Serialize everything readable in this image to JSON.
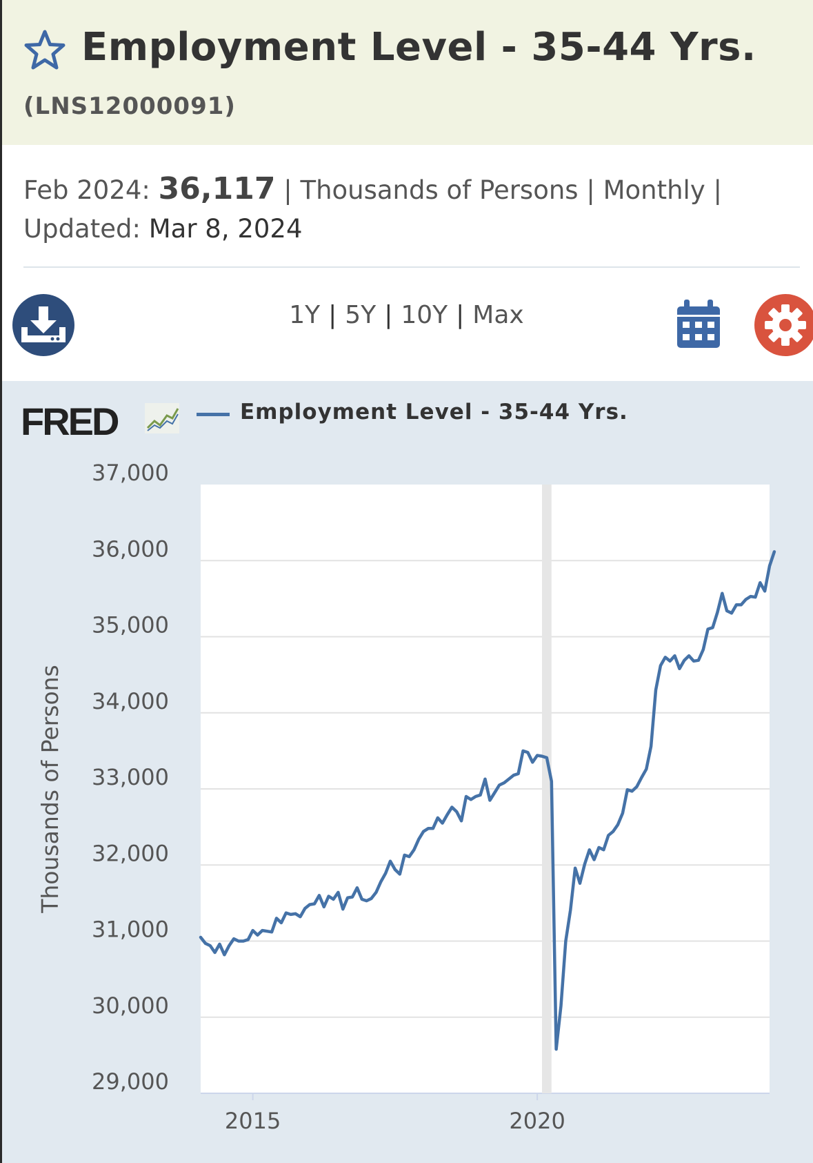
{
  "header": {
    "title": "Employment Level - 35-44 Yrs.",
    "series_id": "(LNS12000091)"
  },
  "meta": {
    "date_label": "Feb 2024:",
    "value": "36,117",
    "units": "Thousands of Persons",
    "frequency": "Monthly",
    "updated_label": "Updated:",
    "updated_date": "Mar 8, 2024",
    "separator": "|"
  },
  "toolbar": {
    "ranges": [
      "1Y",
      "5Y",
      "10Y",
      "Max"
    ]
  },
  "branding": {
    "logo_text": "FRED"
  },
  "colors": {
    "series": "#4572a7",
    "header_bg": "#f1f3e2",
    "chart_bg": "#e1e9f0",
    "download_button": "#2e4d7b",
    "settings_button": "#d9533e",
    "calendar": "#3e68a6",
    "recession_band": "#e6e6e6"
  },
  "chart_data": {
    "type": "line",
    "title": "",
    "xlabel": "",
    "ylabel": "Thousands of Persons",
    "legend": "top-left",
    "grid": true,
    "ylim": [
      29000,
      37000
    ],
    "xlim": [
      "2014-02",
      "2024-02"
    ],
    "yticks": [
      "29,000",
      "30,000",
      "31,000",
      "32,000",
      "33,000",
      "34,000",
      "35,000",
      "36,000",
      "37,000"
    ],
    "xticks": [
      {
        "label": "2015",
        "date": "2015-01"
      },
      {
        "label": "2020",
        "date": "2020-01"
      }
    ],
    "recession": {
      "start": "2020-02",
      "end": "2020-04"
    },
    "series": [
      {
        "name": "Employment Level - 35-44 Yrs.",
        "start": "2014-02",
        "frequency": "monthly",
        "values": [
          31050,
          30970,
          30940,
          30850,
          30960,
          30820,
          30940,
          31030,
          31000,
          31000,
          31020,
          31140,
          31080,
          31140,
          31130,
          31120,
          31300,
          31240,
          31370,
          31350,
          31360,
          31320,
          31430,
          31480,
          31490,
          31600,
          31450,
          31590,
          31550,
          31640,
          31420,
          31570,
          31580,
          31700,
          31550,
          31530,
          31560,
          31640,
          31780,
          31890,
          32050,
          31940,
          31880,
          32130,
          32110,
          32200,
          32340,
          32440,
          32480,
          32480,
          32620,
          32550,
          32660,
          32760,
          32700,
          32580,
          32900,
          32860,
          32900,
          32920,
          33130,
          32850,
          32950,
          33050,
          33080,
          33130,
          33180,
          33200,
          33500,
          33480,
          33350,
          33440,
          33430,
          33410,
          33100,
          29580,
          30150,
          31000,
          31410,
          31960,
          31760,
          32010,
          32200,
          32070,
          32230,
          32200,
          32390,
          32440,
          32530,
          32680,
          32990,
          32970,
          33030,
          33150,
          33260,
          33560,
          34300,
          34620,
          34730,
          34680,
          34750,
          34580,
          34690,
          34750,
          34680,
          34690,
          34830,
          35100,
          35120,
          35320,
          35570,
          35340,
          35310,
          35420,
          35420,
          35490,
          35530,
          35520,
          35710,
          35600,
          35930,
          36117
        ]
      }
    ]
  }
}
